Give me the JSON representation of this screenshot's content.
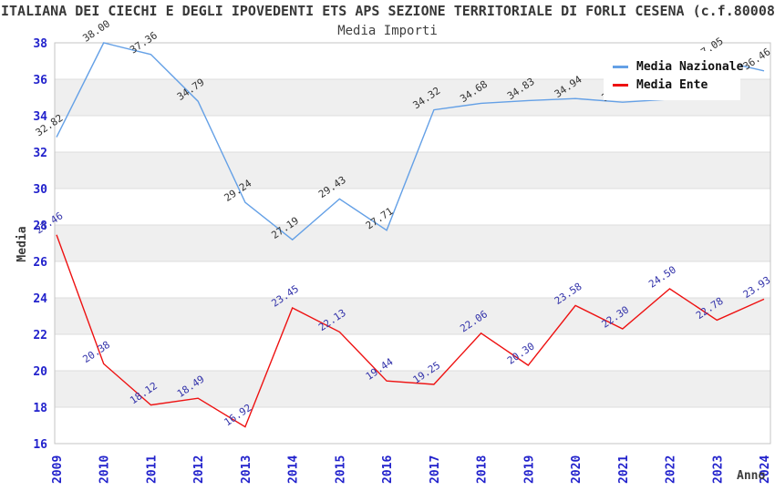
{
  "title": "ITALIANA DEI CIECHI E DEGLI IPOVEDENTI ETS APS SEZIONE TERRITORIALE DI FORLI CESENA (c.f.80008",
  "subtitle": "Media Importi",
  "axes": {
    "x_label": "Anno",
    "y_label": "Media",
    "tick_color": "#2222cc"
  },
  "legend": {
    "position": "top-right",
    "items": [
      {
        "label": "Media Nazionale",
        "color": "#64a0e6"
      },
      {
        "label": "Media Ente",
        "color": "#ee1111"
      }
    ]
  },
  "chart_data": {
    "type": "line",
    "title": "Media Importi",
    "xlabel": "Anno",
    "ylabel": "Media",
    "x": [
      2009,
      2010,
      2011,
      2012,
      2013,
      2014,
      2015,
      2016,
      2017,
      2018,
      2019,
      2020,
      2021,
      2022,
      2023,
      2024
    ],
    "ylim": [
      16,
      38
    ],
    "ytick_step": 2,
    "grid": true,
    "band_fill": "#efefef",
    "gridline_color": "#dcdcdc",
    "border_color": "#c4c4c4",
    "legend_position": "top-right",
    "series": [
      {
        "name": "Media Nazionale",
        "color": "#64a0e6",
        "label_color": "#333333",
        "values": [
          32.82,
          38.0,
          37.36,
          34.79,
          29.24,
          27.19,
          29.43,
          27.71,
          34.32,
          34.68,
          34.83,
          34.94,
          34.74,
          34.9,
          37.05,
          36.46
        ]
      },
      {
        "name": "Media Ente",
        "color": "#ee1111",
        "label_color": "#3333aa",
        "values": [
          27.46,
          20.38,
          18.12,
          18.49,
          16.92,
          23.45,
          22.13,
          19.44,
          19.25,
          22.06,
          20.3,
          23.58,
          22.3,
          24.5,
          22.78,
          23.93
        ]
      }
    ]
  }
}
